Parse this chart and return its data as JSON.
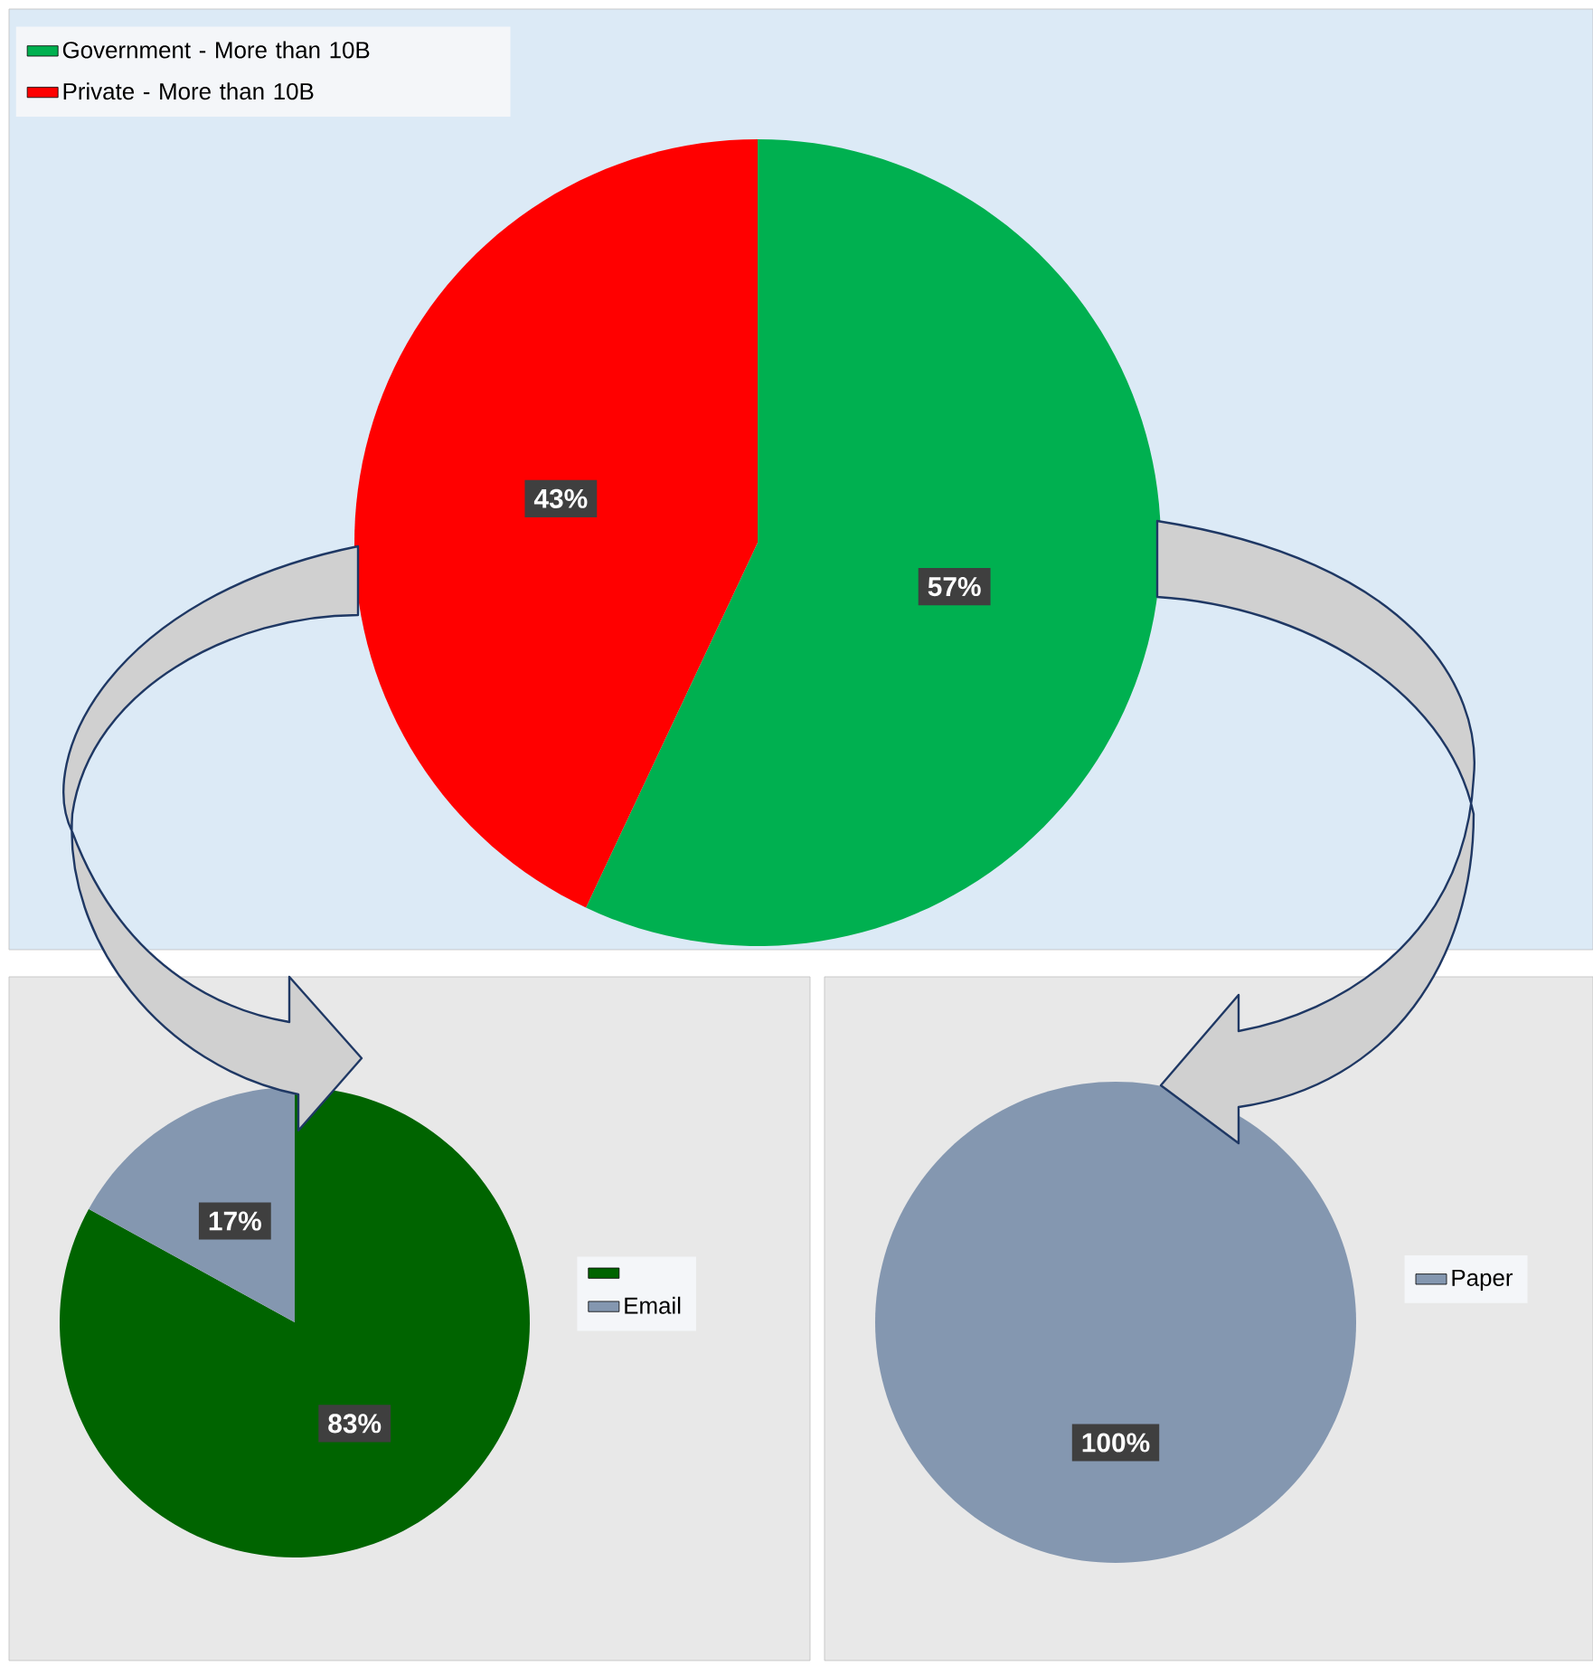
{
  "chart_data": [
    {
      "type": "pie",
      "categories": [
        "Government - More than 10B",
        "Private - More than 10B"
      ],
      "values": [
        57,
        43
      ],
      "colors": [
        "#00b050",
        "#ff0000"
      ],
      "value_labels": [
        "57%",
        "43%"
      ],
      "legend": "top left"
    },
    {
      "type": "pie",
      "categories": [
        null,
        "Email"
      ],
      "values": [
        83,
        17
      ],
      "colors": [
        "#006400",
        "#8497b0"
      ],
      "value_labels": [
        "83%",
        "17%"
      ],
      "legend": "right"
    },
    {
      "type": "pie",
      "categories": [
        "Paper"
      ],
      "values": [
        100
      ],
      "colors": [
        "#8497b0"
      ],
      "value_labels": [
        "100%"
      ],
      "legend": "right"
    }
  ]
}
